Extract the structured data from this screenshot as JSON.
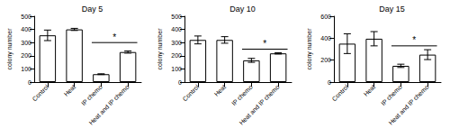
{
  "chart_data": [
    {
      "type": "bar",
      "title": "Day 5",
      "ylabel": "colony number",
      "categories": [
        "Control",
        "Heat",
        "IP chemo",
        "Heat and IP chemo"
      ],
      "values": [
        355,
        400,
        60,
        228
      ],
      "errors": [
        40,
        8,
        3,
        8
      ],
      "color": "#ffffff",
      "ylim": [
        0,
        500
      ],
      "yticks": [
        0,
        100,
        200,
        300,
        400,
        500
      ],
      "grid": false,
      "annotations": [
        {
          "text": "*",
          "from": "IP chemo",
          "to": "Heat and IP chemo",
          "y": 300
        }
      ]
    },
    {
      "type": "bar",
      "title": "Day 10",
      "ylabel": "colony number",
      "categories": [
        "Control",
        "Heat",
        "IP chemo",
        "Heat and IP chemo"
      ],
      "values": [
        320,
        320,
        165,
        218
      ],
      "errors": [
        30,
        25,
        15,
        5
      ],
      "color": "#ffffff",
      "ylim": [
        0,
        500
      ],
      "yticks": [
        0,
        100,
        200,
        300,
        400,
        500
      ],
      "grid": false,
      "annotations": [
        {
          "text": "*",
          "from": "IP chemo",
          "to": "Heat and IP chemo",
          "y": 250
        }
      ]
    },
    {
      "type": "bar",
      "title": "Day 15",
      "ylabel": "colony number",
      "categories": [
        "Control",
        "Heat",
        "IP chemo",
        "Heat and IP chemo"
      ],
      "values": [
        350,
        395,
        148,
        250
      ],
      "errors": [
        90,
        65,
        15,
        45
      ],
      "color": "#ffffff",
      "ylim": [
        0,
        600
      ],
      "yticks": [
        0,
        200,
        400,
        600
      ],
      "grid": false,
      "annotations": [
        {
          "text": "*",
          "from": "IP chemo",
          "to": "Heat and IP chemo",
          "y": 330
        }
      ]
    }
  ]
}
